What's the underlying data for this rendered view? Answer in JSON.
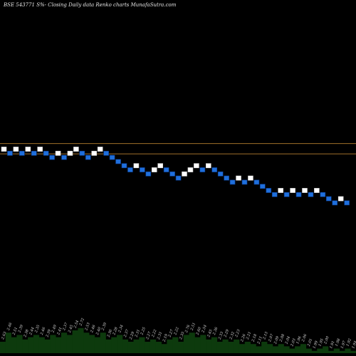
{
  "chart_data": {
    "type": "renko",
    "title": "BSE 543771 S%-  Closing Daily data  Renko  charts MunafaSutra.com",
    "colors": {
      "up_brick": "#ffffff",
      "down_brick": "#1f6fdc",
      "brick_outline": "#0a3a8a",
      "reference_line": "#a0702a",
      "volume_bars": "#0d3a0d",
      "background": "#000000"
    },
    "bricks": [
      {
        "dir": "up",
        "level": 0
      },
      {
        "dir": "down",
        "level": -1
      },
      {
        "dir": "up",
        "level": 0
      },
      {
        "dir": "down",
        "level": -1
      },
      {
        "dir": "up",
        "level": 0
      },
      {
        "dir": "down",
        "level": -1
      },
      {
        "dir": "up",
        "level": 0
      },
      {
        "dir": "down",
        "level": -1
      },
      {
        "dir": "down",
        "level": -2
      },
      {
        "dir": "up",
        "level": -1
      },
      {
        "dir": "down",
        "level": -2
      },
      {
        "dir": "up",
        "level": -1
      },
      {
        "dir": "up",
        "level": 0
      },
      {
        "dir": "down",
        "level": -1
      },
      {
        "dir": "down",
        "level": -2
      },
      {
        "dir": "up",
        "level": -1
      },
      {
        "dir": "up",
        "level": 0
      },
      {
        "dir": "down",
        "level": -1
      },
      {
        "dir": "down",
        "level": -2
      },
      {
        "dir": "down",
        "level": -3
      },
      {
        "dir": "down",
        "level": -4
      },
      {
        "dir": "down",
        "level": -5
      },
      {
        "dir": "up",
        "level": -4
      },
      {
        "dir": "down",
        "level": -5
      },
      {
        "dir": "down",
        "level": -6
      },
      {
        "dir": "up",
        "level": -5
      },
      {
        "dir": "up",
        "level": -4
      },
      {
        "dir": "down",
        "level": -5
      },
      {
        "dir": "down",
        "level": -6
      },
      {
        "dir": "down",
        "level": -7
      },
      {
        "dir": "up",
        "level": -6
      },
      {
        "dir": "up",
        "level": -5
      },
      {
        "dir": "up",
        "level": -4
      },
      {
        "dir": "down",
        "level": -5
      },
      {
        "dir": "up",
        "level": -4
      },
      {
        "dir": "down",
        "level": -5
      },
      {
        "dir": "down",
        "level": -6
      },
      {
        "dir": "down",
        "level": -7
      },
      {
        "dir": "down",
        "level": -8
      },
      {
        "dir": "up",
        "level": -7
      },
      {
        "dir": "down",
        "level": -8
      },
      {
        "dir": "up",
        "level": -7
      },
      {
        "dir": "down",
        "level": -8
      },
      {
        "dir": "down",
        "level": -9
      },
      {
        "dir": "down",
        "level": -10
      },
      {
        "dir": "down",
        "level": -11
      },
      {
        "dir": "up",
        "level": -10
      },
      {
        "dir": "down",
        "level": -11
      },
      {
        "dir": "up",
        "level": -10
      },
      {
        "dir": "down",
        "level": -11
      },
      {
        "dir": "up",
        "level": -10
      },
      {
        "dir": "down",
        "level": -11
      },
      {
        "dir": "up",
        "level": -10
      },
      {
        "dir": "down",
        "level": -11
      },
      {
        "dir": "down",
        "level": -12
      },
      {
        "dir": "down",
        "level": -13
      },
      {
        "dir": "up",
        "level": -12
      },
      {
        "dir": "down",
        "level": -13
      }
    ],
    "reference_lines": [
      1,
      -1.5
    ],
    "volume": {
      "values": [
        5,
        9,
        7,
        8,
        6,
        7,
        8,
        7,
        6,
        8,
        7,
        9,
        8,
        10,
        11,
        9,
        8,
        7,
        9,
        6,
        7,
        8,
        6,
        5,
        6,
        7,
        5,
        6,
        5,
        4,
        6,
        7,
        5,
        8,
        9,
        7,
        8,
        6,
        7,
        5,
        6,
        5,
        6,
        4,
        5,
        4,
        3,
        5,
        4,
        3,
        4,
        3,
        2,
        3,
        4,
        2,
        1,
        2,
        3,
        1,
        2,
        1,
        2,
        1
      ],
      "labels": [
        "2.63",
        "2.46",
        "2.51",
        "2.39",
        "2.38",
        "2.44",
        "2.35",
        "2.46",
        "2.39",
        "2.49",
        "2.41",
        "2.37",
        "2.45",
        "2.54",
        "2.72",
        "2.53",
        "2.46",
        "2.40",
        "2.39",
        "2.36",
        "2.28",
        "2.34",
        "2.37",
        "2.29",
        "2.31",
        "2.25",
        "2.27",
        "2.22",
        "2.31",
        "2.19",
        "2.27",
        "2.22",
        "2.35",
        "2.76",
        "2.51",
        "2.60",
        "2.54",
        "2.45",
        "2.36",
        "2.33",
        "2.29",
        "2.32",
        "2.23",
        "2.26",
        "2.21",
        "2.18",
        "2.11",
        "2.15",
        "2.07",
        "2.09",
        "2.08",
        "2.04",
        "2.03",
        "1.96",
        "2.06",
        "2.01",
        "1.99",
        "1.95",
        "2.00",
        "1.91",
        "1.98",
        "1.97",
        "1.92",
        "1.94"
      ]
    }
  }
}
